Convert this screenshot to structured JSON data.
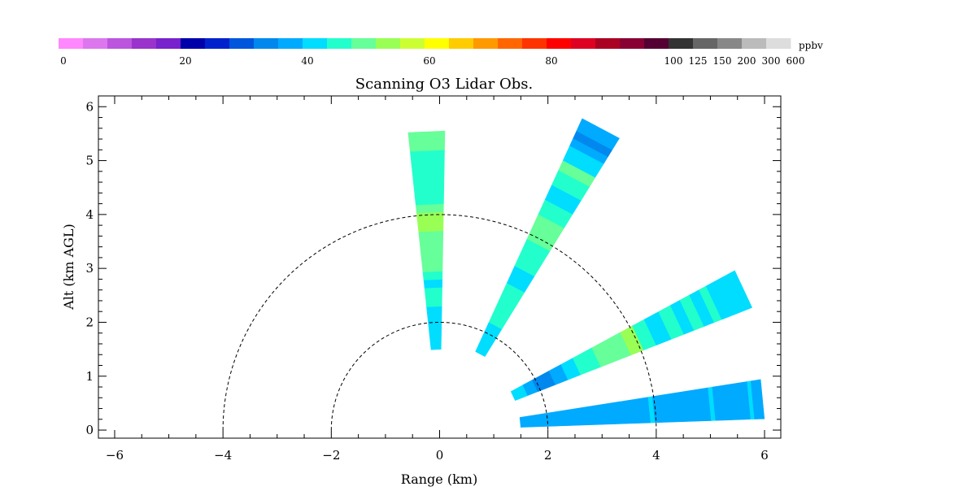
{
  "chart_data": {
    "type": "heatmap",
    "title": "Scanning O3 Lidar Obs.",
    "xlabel": "Range (km)",
    "ylabel": "Alt (km AGL)",
    "xlim": [
      -6.3,
      6.3
    ],
    "ylim": [
      -0.15,
      6.2
    ],
    "xticks": [
      -6,
      -4,
      -2,
      0,
      2,
      4,
      6
    ],
    "yticks": [
      0,
      1,
      2,
      3,
      4,
      5,
      6
    ],
    "xtick_labels": [
      "−6",
      "−4",
      "−2",
      "0",
      "2",
      "4",
      "6"
    ],
    "ytick_labels": [
      "0",
      "1",
      "2",
      "3",
      "4",
      "5",
      "6"
    ],
    "grid": false,
    "reference_arcs_km": [
      2,
      4
    ],
    "colorbar": {
      "unit": "ppbv",
      "colors": [
        "#ff88ff",
        "#dd77ee",
        "#bb55dd",
        "#9933cc",
        "#7722cc",
        "#0000aa",
        "#0022cc",
        "#0055dd",
        "#0088ee",
        "#00aaff",
        "#00ddff",
        "#22ffcc",
        "#66ff99",
        "#99ff55",
        "#ccff33",
        "#ffff00",
        "#ffcc00",
        "#ff9900",
        "#ff6600",
        "#ff3300",
        "#ff0000",
        "#dd0022",
        "#aa0022",
        "#880033",
        "#550033",
        "#333333",
        "#666666",
        "#888888",
        "#bbbbbb",
        "#dddddd"
      ],
      "tick_labels": [
        {
          "label": "0",
          "index": 0
        },
        {
          "label": "20",
          "index": 5
        },
        {
          "label": "40",
          "index": 10
        },
        {
          "label": "60",
          "index": 15
        },
        {
          "label": "80",
          "index": 20
        },
        {
          "label": "100",
          "index": 25
        },
        {
          "label": "125",
          "index": 26
        },
        {
          "label": "150",
          "index": 27
        },
        {
          "label": "200",
          "index": 28
        },
        {
          "label": "300",
          "index": 29
        },
        {
          "label": "600",
          "index": 30
        }
      ]
    },
    "beams": [
      {
        "elevation_deg": 92.5,
        "half_width_deg": 3.5,
        "segments": [
          {
            "r0": 1.5,
            "r1": 2.3,
            "color": "#00ddff"
          },
          {
            "r0": 2.3,
            "r1": 2.65,
            "color": "#22ffcc"
          },
          {
            "r0": 2.65,
            "r1": 2.8,
            "color": "#00ddff"
          },
          {
            "r0": 2.8,
            "r1": 2.95,
            "color": "#22ffcc"
          },
          {
            "r0": 2.95,
            "r1": 3.7,
            "color": "#66ff99"
          },
          {
            "r0": 3.7,
            "r1": 4.05,
            "color": "#99ff55"
          },
          {
            "r0": 4.05,
            "r1": 4.2,
            "color": "#66ff99"
          },
          {
            "r0": 4.2,
            "r1": 5.2,
            "color": "#22ffcc"
          },
          {
            "r0": 5.2,
            "r1": 5.55,
            "color": "#66ff99"
          }
        ]
      },
      {
        "elevation_deg": 62,
        "half_width_deg": 3.5,
        "segments": [
          {
            "r0": 1.6,
            "r1": 2.2,
            "color": "#00ddff"
          },
          {
            "r0": 2.2,
            "r1": 3.0,
            "color": "#22ffcc"
          },
          {
            "r0": 3.0,
            "r1": 3.35,
            "color": "#00ddff"
          },
          {
            "r0": 3.35,
            "r1": 3.9,
            "color": "#22ffcc"
          },
          {
            "r0": 3.9,
            "r1": 4.4,
            "color": "#66ff99"
          },
          {
            "r0": 4.4,
            "r1": 4.7,
            "color": "#22ffcc"
          },
          {
            "r0": 4.7,
            "r1": 5.0,
            "color": "#00ddff"
          },
          {
            "r0": 5.0,
            "r1": 5.3,
            "color": "#22ffcc"
          },
          {
            "r0": 5.3,
            "r1": 5.5,
            "color": "#66ff99"
          },
          {
            "r0": 5.5,
            "r1": 5.8,
            "color": "#00ddff"
          },
          {
            "r0": 5.8,
            "r1": 5.95,
            "color": "#00aaff"
          },
          {
            "r0": 5.95,
            "r1": 6.1,
            "color": "#0088ee"
          },
          {
            "r0": 6.1,
            "r1": 6.35,
            "color": "#00aaff"
          }
        ]
      },
      {
        "elevation_deg": 25,
        "half_width_deg": 3.5,
        "segments": [
          {
            "r0": 1.5,
            "r1": 1.75,
            "color": "#00ddff"
          },
          {
            "r0": 1.75,
            "r1": 1.95,
            "color": "#00aaff"
          },
          {
            "r0": 1.95,
            "r1": 2.3,
            "color": "#0088ee"
          },
          {
            "r0": 2.3,
            "r1": 2.55,
            "color": "#00aaff"
          },
          {
            "r0": 2.55,
            "r1": 2.8,
            "color": "#00ddff"
          },
          {
            "r0": 2.8,
            "r1": 3.2,
            "color": "#22ffcc"
          },
          {
            "r0": 3.2,
            "r1": 3.8,
            "color": "#66ff99"
          },
          {
            "r0": 3.8,
            "r1": 4.05,
            "color": "#99ff55"
          },
          {
            "r0": 4.05,
            "r1": 4.3,
            "color": "#22ffcc"
          },
          {
            "r0": 4.3,
            "r1": 4.6,
            "color": "#00ddff"
          },
          {
            "r0": 4.6,
            "r1": 4.85,
            "color": "#22ffcc"
          },
          {
            "r0": 4.85,
            "r1": 5.05,
            "color": "#00ddff"
          },
          {
            "r0": 5.05,
            "r1": 5.25,
            "color": "#22ffcc"
          },
          {
            "r0": 5.25,
            "r1": 5.45,
            "color": "#00ddff"
          },
          {
            "r0": 5.45,
            "r1": 5.6,
            "color": "#22ffcc"
          },
          {
            "r0": 5.6,
            "r1": 6.2,
            "color": "#00ddff"
          }
        ]
      },
      {
        "elevation_deg": 5.5,
        "half_width_deg": 3.5,
        "segments": [
          {
            "r0": 1.5,
            "r1": 3.9,
            "color": "#00aaff"
          },
          {
            "r0": 3.9,
            "r1": 3.98,
            "color": "#00ddff"
          },
          {
            "r0": 3.98,
            "r1": 5.02,
            "color": "#00aaff"
          },
          {
            "r0": 5.02,
            "r1": 5.1,
            "color": "#00ddff"
          },
          {
            "r0": 5.1,
            "r1": 5.75,
            "color": "#00aaff"
          },
          {
            "r0": 5.75,
            "r1": 5.82,
            "color": "#00ddff"
          },
          {
            "r0": 5.82,
            "r1": 6.0,
            "color": "#00aaff"
          }
        ]
      }
    ]
  }
}
